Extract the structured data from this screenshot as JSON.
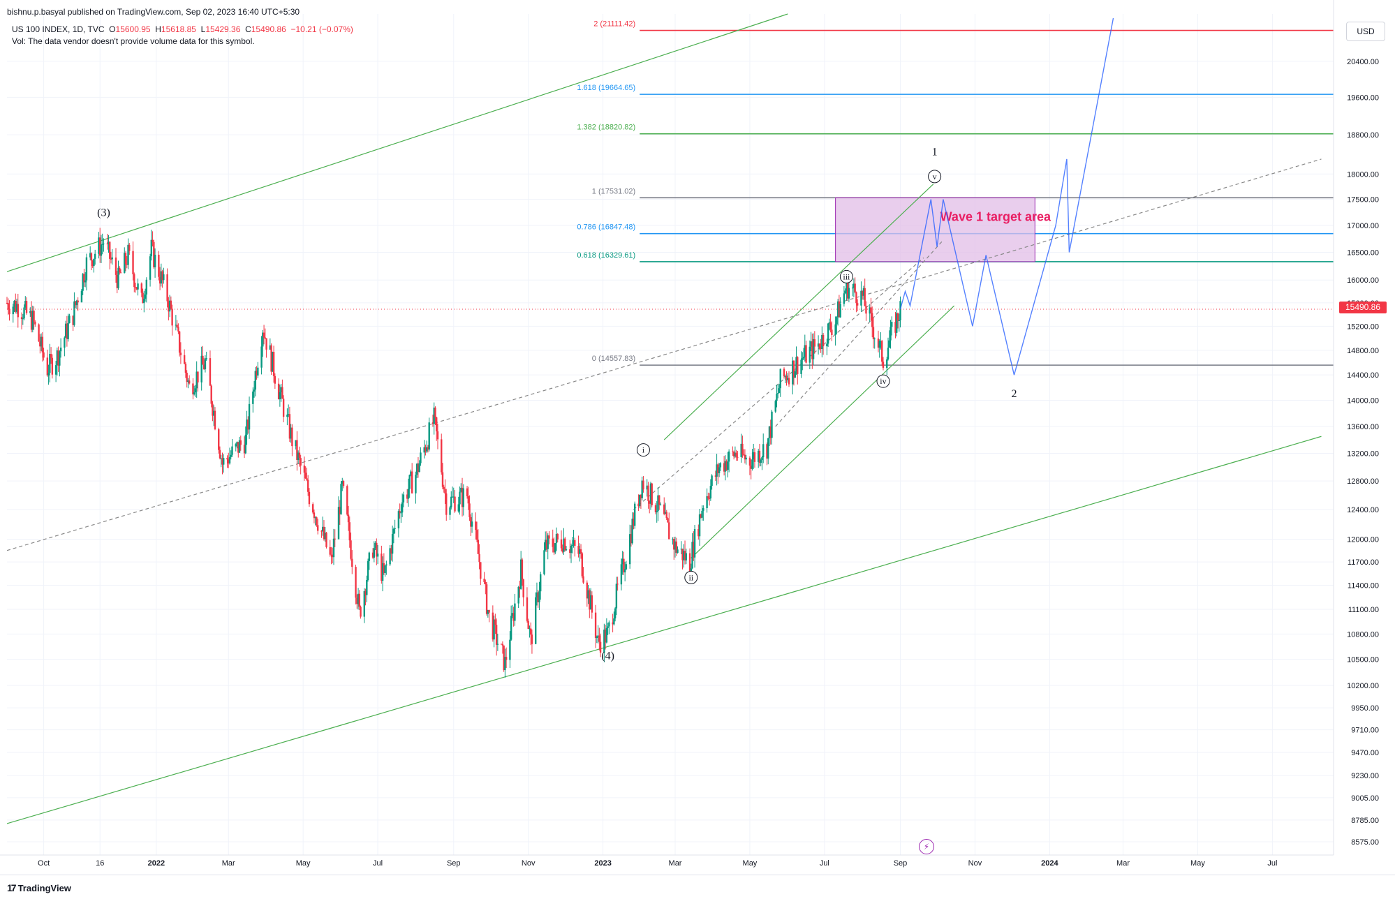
{
  "header": {
    "credit": "bishnu.p.basyal published on TradingView.com, Sep 02, 2023 16:40 UTC+5:30",
    "symbol": "US 100 INDEX, 1D, TVC",
    "open_label": "O",
    "open": "15600.95",
    "high_label": "H",
    "high": "15618.85",
    "low_label": "L",
    "low": "15429.36",
    "close_label": "C",
    "close": "15490.86",
    "change": "−10.21 (−0.07%)",
    "vol_note": "Vol: The data vendor doesn't provide volume data for this symbol."
  },
  "currency_button": "USD",
  "last_price_tag": "15490.86",
  "branding": {
    "logo_text": "TradingView",
    "logo_mark": "17"
  },
  "colors": {
    "up": "#089981",
    "down": "#f23645",
    "channel": "#4caf50",
    "forecast": "#2962ff",
    "fib_gray": "#787b86",
    "fib_blue": "#2196f3",
    "fib_green": "#4caf50",
    "fib_teal": "#089981",
    "fib_red": "#f23645",
    "target_box": "#e1bee7",
    "target_text": "#e91e63"
  },
  "chart_data": {
    "type": "candlestick",
    "title": "",
    "xlabel": "",
    "ylabel": "",
    "y_scale": "log",
    "y_range": [
      8450,
      21500
    ],
    "x_range": [
      "2021-09-01",
      "2024-08-20"
    ],
    "grid": true,
    "price_axis_ticks": [
      "20400.00",
      "19600.00",
      "18800.00",
      "18000.00",
      "17500.00",
      "17000.00",
      "16500.00",
      "16000.00",
      "15600.00",
      "15200.00",
      "14800.00",
      "14400.00",
      "14000.00",
      "13600.00",
      "13200.00",
      "12800.00",
      "12400.00",
      "12000.00",
      "11700.00",
      "11400.00",
      "11100.00",
      "10800.00",
      "10500.00",
      "10200.00",
      "9950.00",
      "9710.00",
      "9470.00",
      "9230.00",
      "9005.00",
      "8785.00",
      "8575.00"
    ],
    "time_axis_ticks": [
      {
        "label": "Oct",
        "date": "2021-10-01",
        "bold": false
      },
      {
        "label": "16",
        "date": "2021-11-16",
        "bold": false
      },
      {
        "label": "2022",
        "date": "2022-01-01",
        "bold": true
      },
      {
        "label": "Mar",
        "date": "2022-03-01",
        "bold": false
      },
      {
        "label": "May",
        "date": "2022-05-01",
        "bold": false
      },
      {
        "label": "Jul",
        "date": "2022-07-01",
        "bold": false
      },
      {
        "label": "Sep",
        "date": "2022-09-01",
        "bold": false
      },
      {
        "label": "Nov",
        "date": "2022-11-01",
        "bold": false
      },
      {
        "label": "2023",
        "date": "2023-01-01",
        "bold": true
      },
      {
        "label": "Mar",
        "date": "2023-03-01",
        "bold": false
      },
      {
        "label": "May",
        "date": "2023-05-01",
        "bold": false
      },
      {
        "label": "Jul",
        "date": "2023-07-01",
        "bold": false
      },
      {
        "label": "Sep",
        "date": "2023-09-01",
        "bold": false
      },
      {
        "label": "Nov",
        "date": "2023-11-01",
        "bold": false
      },
      {
        "label": "2024",
        "date": "2024-01-01",
        "bold": true
      },
      {
        "label": "Mar",
        "date": "2024-03-01",
        "bold": false
      },
      {
        "label": "May",
        "date": "2024-05-01",
        "bold": false
      },
      {
        "label": "Jul",
        "date": "2024-07-01",
        "bold": false
      }
    ],
    "price_path": [
      [
        "2021-09-01",
        15600
      ],
      [
        "2021-09-10",
        15550
      ],
      [
        "2021-09-22",
        15300
      ],
      [
        "2021-10-04",
        14500
      ],
      [
        "2021-10-12",
        14700
      ],
      [
        "2021-10-25",
        15400
      ],
      [
        "2021-11-05",
        16300
      ],
      [
        "2021-11-19",
        16700
      ],
      [
        "2021-12-01",
        16000
      ],
      [
        "2021-12-09",
        16450
      ],
      [
        "2021-12-20",
        15600
      ],
      [
        "2021-12-28",
        16550
      ],
      [
        "2022-01-10",
        15700
      ],
      [
        "2022-01-28",
        14200
      ],
      [
        "2022-02-10",
        14600
      ],
      [
        "2022-02-24",
        13050
      ],
      [
        "2022-03-15",
        13400
      ],
      [
        "2022-03-29",
        15200
      ],
      [
        "2022-04-12",
        14100
      ],
      [
        "2022-04-22",
        13400
      ],
      [
        "2022-05-06",
        12600
      ],
      [
        "2022-05-24",
        11700
      ],
      [
        "2022-06-02",
        12700
      ],
      [
        "2022-06-16",
        11050
      ],
      [
        "2022-06-27",
        11900
      ],
      [
        "2022-07-06",
        11500
      ],
      [
        "2022-07-20",
        12500
      ],
      [
        "2022-08-01",
        12900
      ],
      [
        "2022-08-16",
        13700
      ],
      [
        "2022-08-26",
        12500
      ],
      [
        "2022-09-12",
        12600
      ],
      [
        "2022-09-30",
        11000
      ],
      [
        "2022-10-13",
        10450
      ],
      [
        "2022-10-26",
        11600
      ],
      [
        "2022-11-03",
        10700
      ],
      [
        "2022-11-15",
        11900
      ],
      [
        "2022-11-30",
        12000
      ],
      [
        "2022-12-13",
        11800
      ],
      [
        "2022-12-28",
        10700
      ],
      [
        "2023-01-05",
        10800
      ],
      [
        "2023-01-20",
        11800
      ],
      [
        "2023-02-02",
        12800
      ],
      [
        "2023-02-16",
        12400
      ],
      [
        "2023-03-01",
        11900
      ],
      [
        "2023-03-13",
        11700
      ],
      [
        "2023-03-24",
        12500
      ],
      [
        "2023-04-06",
        13000
      ],
      [
        "2023-04-19",
        13200
      ],
      [
        "2023-05-01",
        13100
      ],
      [
        "2023-05-15",
        13300
      ],
      [
        "2023-05-26",
        14300
      ],
      [
        "2023-06-09",
        14600
      ],
      [
        "2023-06-26",
        14900
      ],
      [
        "2023-07-10",
        15300
      ],
      [
        "2023-07-19",
        15900
      ],
      [
        "2023-08-01",
        15700
      ],
      [
        "2023-08-18",
        14650
      ],
      [
        "2023-09-01",
        15490
      ]
    ],
    "last_price": 15490.86,
    "fib_levels": [
      {
        "ratio": "0",
        "price": 14557.83,
        "label": "0 (14557.83)",
        "color": "#787b86"
      },
      {
        "ratio": "0.618",
        "price": 16329.61,
        "label": "0.618 (16329.61)",
        "color": "#089981"
      },
      {
        "ratio": "0.786",
        "price": 16847.48,
        "label": "0.786 (16847.48)",
        "color": "#2196f3"
      },
      {
        "ratio": "1",
        "price": 17531.02,
        "label": "1 (17531.02)",
        "color": "#787b86"
      },
      {
        "ratio": "1.382",
        "price": 18820.82,
        "label": "1.382 (18820.82)",
        "color": "#4caf50"
      },
      {
        "ratio": "1.618",
        "price": 19664.65,
        "label": "1.618 (19664.65)",
        "color": "#2196f3"
      },
      {
        "ratio": "2",
        "price": 21111.42,
        "label": "2 (21111.42)",
        "color": "#f23645"
      }
    ],
    "target_zone": {
      "label": "Wave 1 target area",
      "from": "2023-07-10",
      "to": "2023-12-20",
      "low": 16329.61,
      "high": 17531.02
    },
    "forecast_path": [
      [
        "2023-09-01",
        15490
      ],
      [
        "2023-09-05",
        15800
      ],
      [
        "2023-09-09",
        15550
      ],
      [
        "2023-09-26",
        17500
      ],
      [
        "2023-10-01",
        16600
      ],
      [
        "2023-10-06",
        17500
      ],
      [
        "2023-10-30",
        15200
      ],
      [
        "2023-11-10",
        16450
      ],
      [
        "2023-12-03",
        14400
      ],
      [
        "2024-01-06",
        17000
      ],
      [
        "2024-01-15",
        18300
      ],
      [
        "2024-01-17",
        16500
      ],
      [
        "2024-02-22",
        21400
      ]
    ],
    "channels": [
      {
        "name": "outer-upper",
        "points": [
          [
            "2021-09-01",
            16150
          ],
          [
            "2023-06-01",
            21500
          ]
        ],
        "dashed": false
      },
      {
        "name": "outer-lower",
        "points": [
          [
            "2021-09-01",
            8750
          ],
          [
            "2024-08-10",
            13450
          ]
        ],
        "dashed": false
      },
      {
        "name": "inner-upper",
        "points": [
          [
            "2023-02-20",
            13400
          ],
          [
            "2023-09-28",
            17800
          ]
        ],
        "dashed": false
      },
      {
        "name": "inner-lower",
        "points": [
          [
            "2023-03-14",
            11750
          ],
          [
            "2023-10-15",
            15550
          ]
        ],
        "dashed": false
      },
      {
        "name": "trend-dashed-long",
        "points": [
          [
            "2021-09-01",
            11850
          ],
          [
            "2024-08-10",
            18300
          ]
        ],
        "dashed": true
      },
      {
        "name": "trend-dashed-short-1",
        "points": [
          [
            "2023-01-26",
            12400
          ],
          [
            "2023-09-20",
            16400
          ]
        ],
        "dashed": true
      },
      {
        "name": "trend-dashed-short-2",
        "points": [
          [
            "2023-05-22",
            13600
          ],
          [
            "2023-10-05",
            16700
          ]
        ],
        "dashed": true
      }
    ],
    "wave_labels": [
      {
        "text": "(3)",
        "date": "2021-11-19",
        "price": 17180,
        "circle": false
      },
      {
        "text": "(4)",
        "date": "2023-01-05",
        "price": 10500,
        "circle": false
      },
      {
        "text": "i",
        "date": "2023-02-03",
        "price": 13250,
        "circle": true
      },
      {
        "text": "ii",
        "date": "2023-03-14",
        "price": 11500,
        "circle": true
      },
      {
        "text": "iii",
        "date": "2023-07-19",
        "price": 16060,
        "circle": true
      },
      {
        "text": "iv",
        "date": "2023-08-18",
        "price": 14300,
        "circle": true
      },
      {
        "text": "v",
        "date": "2023-09-29",
        "price": 17950,
        "circle": true
      },
      {
        "text": "1",
        "date": "2023-09-29",
        "price": 18380,
        "circle": false
      },
      {
        "text": "2",
        "date": "2023-12-03",
        "price": 14050,
        "circle": false
      }
    ]
  }
}
